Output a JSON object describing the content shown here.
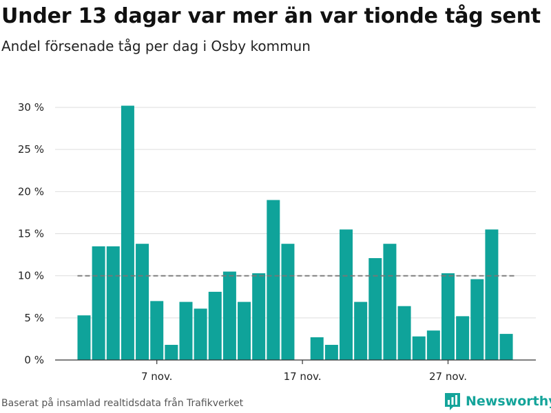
{
  "header": {
    "title": "Under 13 dagar var mer än var tionde tåg sent",
    "subtitle": "Andel försenade tåg per dag i Osby kommun"
  },
  "footer": {
    "source": "Baserat på insamlad realtidsdata från Trafikverket",
    "brand": "Newsworthy"
  },
  "colors": {
    "bar": "#0fa39a",
    "reference_line": "#777777",
    "grid": "#dddddd",
    "brand": "#14a49a"
  },
  "chart_data": {
    "type": "bar",
    "x_dates": [
      "2019-11-02",
      "2019-11-03",
      "2019-11-04",
      "2019-11-05",
      "2019-11-06",
      "2019-11-07",
      "2019-11-08",
      "2019-11-09",
      "2019-11-10",
      "2019-11-11",
      "2019-11-12",
      "2019-11-13",
      "2019-11-14",
      "2019-11-15",
      "2019-11-16",
      "2019-11-17",
      "2019-11-18",
      "2019-11-19",
      "2019-11-20",
      "2019-11-21",
      "2019-11-22",
      "2019-11-23",
      "2019-11-24",
      "2019-11-25",
      "2019-11-26",
      "2019-11-27",
      "2019-11-28",
      "2019-11-29",
      "2019-11-30",
      "2019-12-01"
    ],
    "values": [
      5.3,
      13.5,
      13.5,
      30.2,
      13.8,
      7.0,
      1.8,
      6.9,
      6.1,
      8.1,
      10.5,
      6.9,
      10.3,
      19.0,
      13.8,
      null,
      2.7,
      1.8,
      15.5,
      6.9,
      12.1,
      13.8,
      6.4,
      2.8,
      3.5,
      10.3,
      5.2,
      9.6,
      15.5,
      3.1
    ],
    "reference_value": 10,
    "x_ticks": [
      {
        "date": "2019-11-07",
        "label": "7 nov."
      },
      {
        "date": "2019-11-17",
        "label": "17 nov."
      },
      {
        "date": "2019-11-27",
        "label": "27 nov."
      }
    ],
    "y_ticks": [
      {
        "value": 0,
        "label": "0 %"
      },
      {
        "value": 5,
        "label": "5 %"
      },
      {
        "value": 10,
        "label": "10 %"
      },
      {
        "value": 15,
        "label": "15 %"
      },
      {
        "value": 20,
        "label": "20 %"
      },
      {
        "value": 25,
        "label": "25 %"
      },
      {
        "value": 30,
        "label": "30 %"
      }
    ],
    "ylim": [
      0,
      30
    ],
    "grid": true,
    "ylabel": "",
    "xlabel": ""
  }
}
